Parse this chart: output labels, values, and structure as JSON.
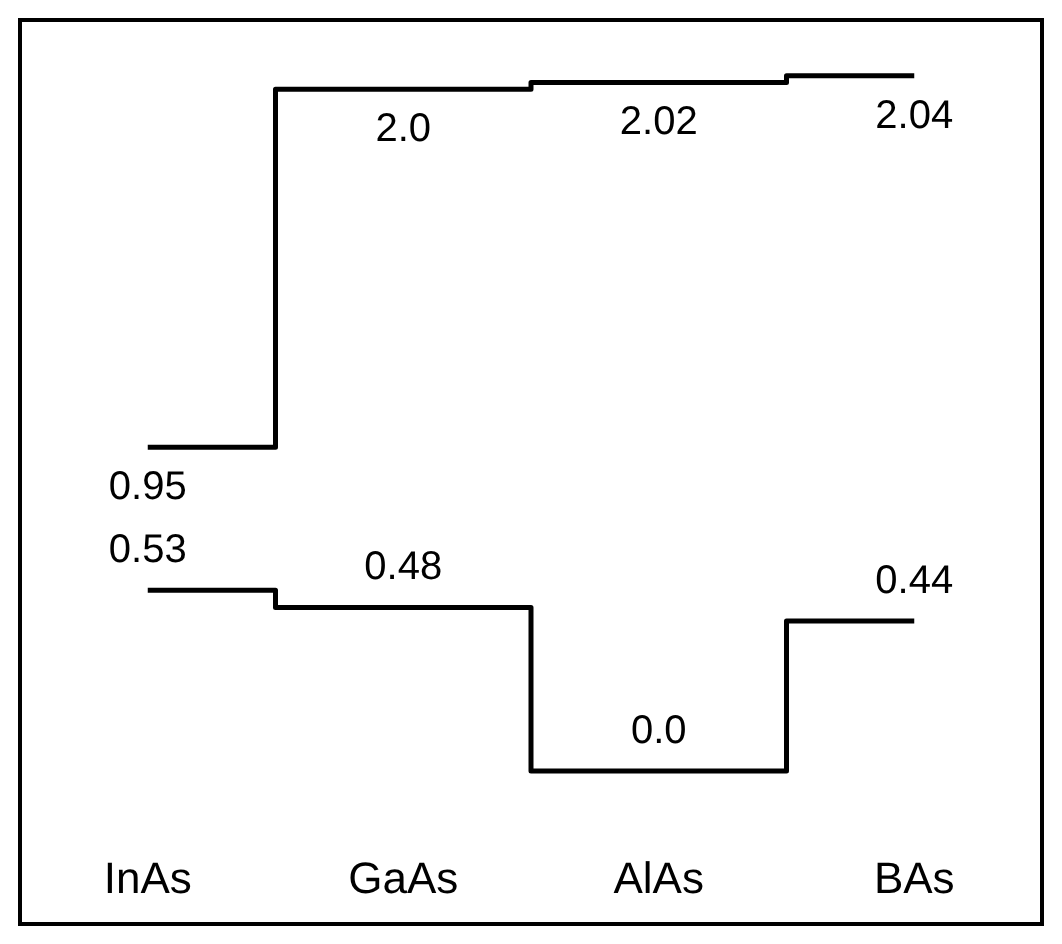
{
  "chart_data": {
    "type": "step",
    "categories": [
      "InAs",
      "GaAs",
      "AlAs",
      "BAs"
    ],
    "series": [
      {
        "color": "#000000",
        "values": [
          0.95,
          2.0,
          2.02,
          2.04
        ],
        "value_labels": [
          "0.95",
          "2.0",
          "2.02",
          "2.04"
        ]
      },
      {
        "color": "#000000",
        "values": [
          0.53,
          0.48,
          0.0,
          0.44
        ],
        "value_labels": [
          "0.53",
          "0.48",
          "0.0",
          "0.44"
        ]
      }
    ]
  }
}
